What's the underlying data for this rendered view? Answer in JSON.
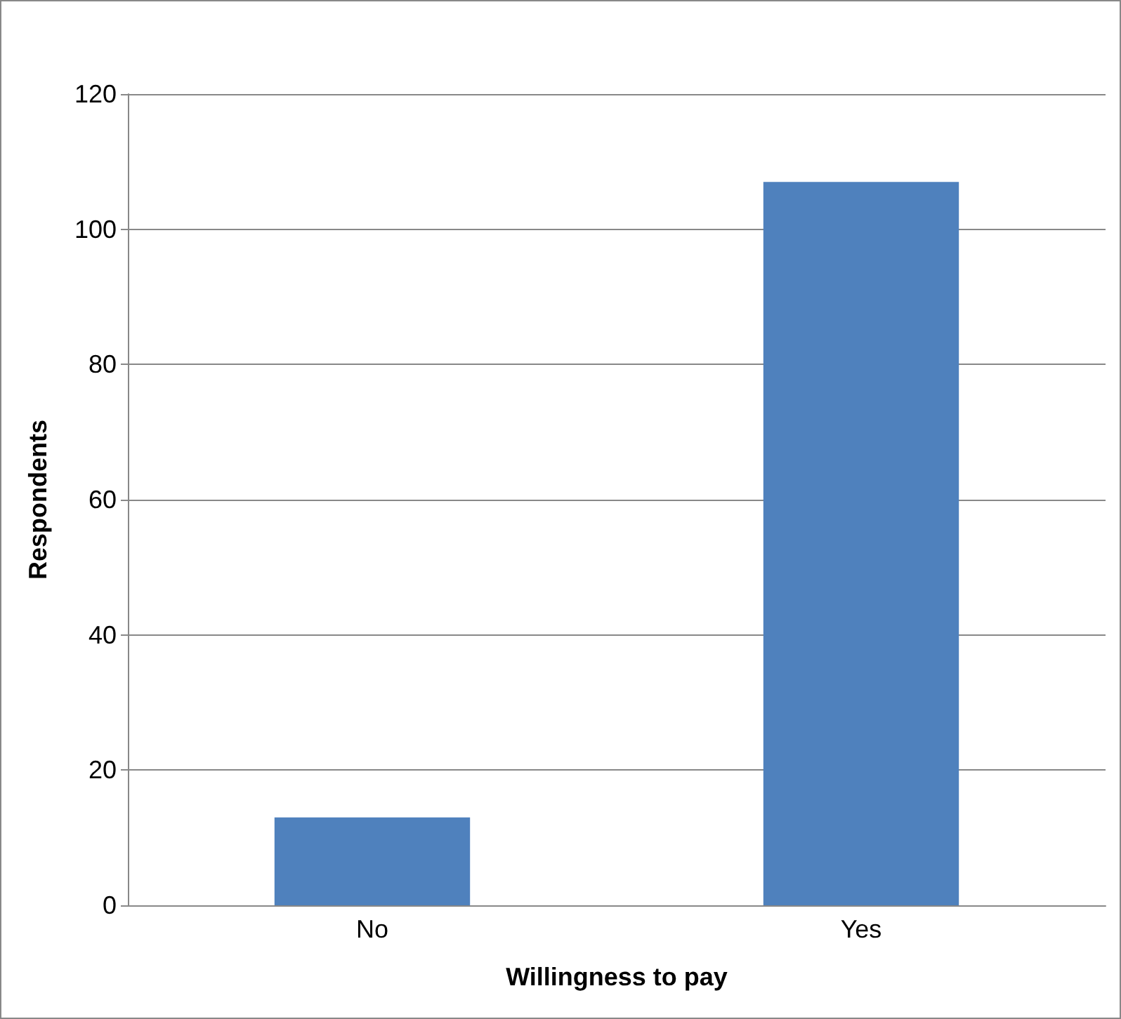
{
  "chart_data": {
    "type": "bar",
    "xlabel": "Willingness to pay",
    "ylabel": "Respondents",
    "categories": [
      "No",
      "Yes"
    ],
    "values": [
      13,
      107
    ],
    "color": "#4f81bd",
    "ylim": [
      0,
      120
    ],
    "yticks": [
      0,
      20,
      40,
      60,
      80,
      100,
      120
    ],
    "grid": "y"
  }
}
